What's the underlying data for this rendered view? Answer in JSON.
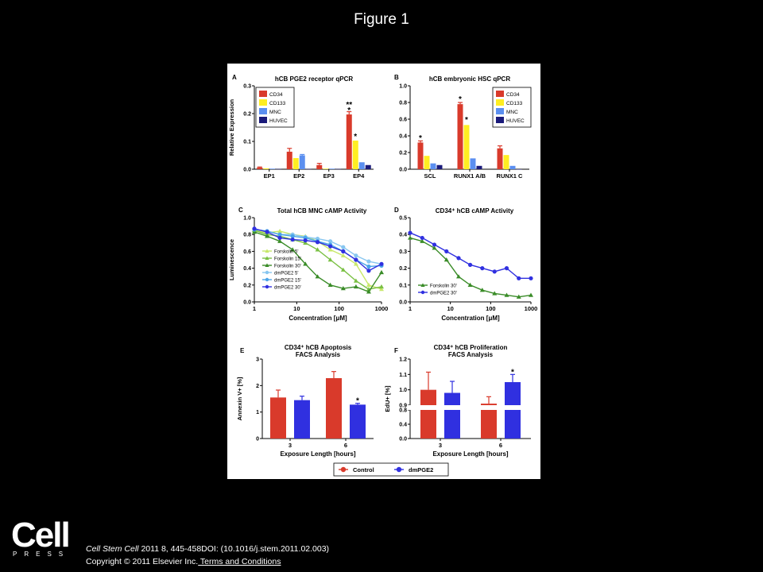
{
  "slide_title": "Figure 1",
  "citation": {
    "journal": "Cell Stem Cell",
    "rest": " 2011 8, 445-458DOI: (10.1016/j.stem.2011.02.003)"
  },
  "copyright": {
    "text": "Copyright © 2011 Elsevier Inc.",
    "link": " Terms and Conditions"
  },
  "logo": {
    "word": "Cell",
    "press": "PRESS"
  },
  "colors": {
    "red": "#d93a2b",
    "yellow": "#ffee22",
    "lightblue": "#5b8ff0",
    "navy": "#1a1a7a",
    "green": "#3a8c28",
    "purple": "#3030e0",
    "lightgreen": "#c8e86a",
    "midgreen": "#7ac043",
    "cyan": "#87c6f0",
    "skyblue": "#4aa4e8"
  },
  "chart_data": [
    {
      "panel": "A",
      "type": "bar",
      "title": "hCB PGE2 receptor qPCR",
      "ylabel": "Relative Expression",
      "xlabel": "",
      "ylim": [
        0,
        0.3
      ],
      "yticks": [
        "0.0",
        "0.1",
        "0.2",
        "0.3"
      ],
      "categories": [
        "EP1",
        "EP2",
        "EP3",
        "EP4"
      ],
      "series": [
        {
          "name": "CD34",
          "color": "#d93a2b",
          "values": [
            0.006,
            0.063,
            0.015,
            0.197
          ],
          "errors": [
            0.002,
            0.012,
            0.006,
            0.01
          ]
        },
        {
          "name": "CD133",
          "color": "#ffee22",
          "values": [
            0.003,
            0.04,
            0.002,
            0.103
          ],
          "errors": [
            0,
            0,
            0,
            0
          ]
        },
        {
          "name": "MNC",
          "color": "#5b8ff0",
          "values": [
            0.002,
            0.05,
            0.002,
            0.025
          ],
          "errors": [
            0,
            0.003,
            0,
            0
          ]
        },
        {
          "name": "HUVEC",
          "color": "#1a1a7a",
          "values": [
            0.001,
            0.001,
            0.001,
            0.015
          ],
          "errors": [
            0,
            0,
            0,
            0
          ]
        }
      ],
      "annotations": [
        {
          "text": "**",
          "cat": 3,
          "series": 0,
          "y": 0.235
        },
        {
          "text": "*",
          "cat": 3,
          "series": 0,
          "y": 0.215
        },
        {
          "text": "*",
          "cat": 3,
          "series": 1,
          "y": 0.12
        }
      ]
    },
    {
      "panel": "B",
      "type": "bar",
      "title": "hCB embryonic HSC qPCR",
      "ylabel": "",
      "xlabel": "",
      "ylim": [
        0,
        1.0
      ],
      "yticks": [
        "0.0",
        "0.2",
        "0.4",
        "0.6",
        "0.8",
        "1.0"
      ],
      "categories": [
        "SCL",
        "RUNX1 A/B",
        "RUNX1 C"
      ],
      "series": [
        {
          "name": "CD34",
          "color": "#d93a2b",
          "values": [
            0.32,
            0.78,
            0.25
          ],
          "errors": [
            0.02,
            0.02,
            0.03
          ]
        },
        {
          "name": "CD133",
          "color": "#ffee22",
          "values": [
            0.16,
            0.53,
            0.17
          ],
          "errors": [
            0,
            0,
            0
          ]
        },
        {
          "name": "MNC",
          "color": "#5b8ff0",
          "values": [
            0.07,
            0.13,
            0.04
          ],
          "errors": [
            0,
            0,
            0
          ]
        },
        {
          "name": "HUVEC",
          "color": "#1a1a7a",
          "values": [
            0.05,
            0.04,
            0.0
          ],
          "errors": [
            0,
            0,
            0
          ]
        }
      ],
      "annotations": [
        {
          "text": "*",
          "cat": 0,
          "series": 0,
          "y": 0.38
        },
        {
          "text": "*",
          "cat": 1,
          "series": 0,
          "y": 0.85
        },
        {
          "text": "*",
          "cat": 1,
          "series": 1,
          "y": 0.6
        }
      ]
    },
    {
      "panel": "C",
      "type": "line",
      "title": "Total hCB MNC cAMP Activity",
      "ylabel": "Luminescence",
      "xlabel": "Concentration [μM]",
      "xscale": "log",
      "xlim": [
        1,
        1000
      ],
      "xticks": [
        "1",
        "10",
        "100",
        "1000"
      ],
      "ylim": [
        0,
        1.0
      ],
      "yticks": [
        "0.0",
        "0.2",
        "0.4",
        "0.6",
        "0.8",
        "1.0"
      ],
      "x": [
        1,
        2,
        4,
        8,
        16,
        31,
        62,
        125,
        250,
        500,
        1000
      ],
      "series": [
        {
          "name": "Forskolin 5'",
          "color": "#c8e86a",
          "marker": "triangle",
          "values": [
            0.85,
            0.82,
            0.84,
            0.8,
            0.78,
            0.72,
            0.62,
            0.55,
            0.45,
            0.2,
            0.15
          ]
        },
        {
          "name": "Forskolin 15'",
          "color": "#7ac043",
          "marker": "triangle",
          "values": [
            0.85,
            0.8,
            0.78,
            0.74,
            0.7,
            0.62,
            0.5,
            0.38,
            0.25,
            0.15,
            0.18
          ]
        },
        {
          "name": "Forskolin 30'",
          "color": "#3a8c28",
          "marker": "triangle",
          "values": [
            0.83,
            0.78,
            0.72,
            0.62,
            0.45,
            0.3,
            0.2,
            0.16,
            0.18,
            0.12,
            0.35
          ]
        },
        {
          "name": "dmPGE2 5'",
          "color": "#87c6f0",
          "marker": "circle",
          "values": [
            0.86,
            0.84,
            0.8,
            0.8,
            0.77,
            0.75,
            0.72,
            0.65,
            0.55,
            0.48,
            0.45
          ]
        },
        {
          "name": "dmPGE2 15'",
          "color": "#4aa4e8",
          "marker": "circle",
          "values": [
            0.86,
            0.84,
            0.8,
            0.78,
            0.76,
            0.72,
            0.68,
            0.6,
            0.5,
            0.42,
            0.43
          ]
        },
        {
          "name": "dmPGE2 30'",
          "color": "#3030e0",
          "marker": "circle",
          "values": [
            0.87,
            0.83,
            0.76,
            0.74,
            0.73,
            0.71,
            0.66,
            0.6,
            0.5,
            0.37,
            0.45
          ]
        }
      ]
    },
    {
      "panel": "D",
      "type": "line",
      "title": "CD34⁺ hCB cAMP Activity",
      "ylabel": "",
      "xlabel": "Concentration [μM]",
      "xscale": "log",
      "xlim": [
        1,
        1000
      ],
      "xticks": [
        "1",
        "10",
        "100",
        "1000"
      ],
      "ylim": [
        0,
        0.5
      ],
      "yticks": [
        "0.0",
        "0.1",
        "0.2",
        "0.3",
        "0.4",
        "0.5"
      ],
      "x": [
        1,
        2,
        4,
        8,
        16,
        31,
        62,
        125,
        250,
        500,
        1000
      ],
      "series": [
        {
          "name": "Forskolin 30'",
          "color": "#3a8c28",
          "marker": "triangle",
          "values": [
            0.38,
            0.36,
            0.32,
            0.25,
            0.15,
            0.1,
            0.07,
            0.05,
            0.04,
            0.03,
            0.04
          ]
        },
        {
          "name": "dmPGE2 30'",
          "color": "#3030e0",
          "marker": "circle",
          "values": [
            0.41,
            0.38,
            0.34,
            0.3,
            0.26,
            0.22,
            0.2,
            0.18,
            0.2,
            0.14,
            0.14
          ]
        }
      ]
    },
    {
      "panel": "E",
      "type": "bar",
      "title": "CD34⁺ hCB Apoptosis",
      "subtitle": "FACS Analysis",
      "ylabel": "Annexin V+ [%]",
      "xlabel": "Exposure Length [hours]",
      "ylim": [
        0,
        3
      ],
      "yticks": [
        "0",
        "1",
        "2",
        "3"
      ],
      "categories": [
        "3",
        "6"
      ],
      "series": [
        {
          "name": "Control",
          "color": "#d93a2b",
          "values": [
            1.55,
            2.28
          ],
          "errors": [
            0.28,
            0.25
          ]
        },
        {
          "name": "dmPGE2",
          "color": "#3030e0",
          "values": [
            1.45,
            1.28
          ],
          "errors": [
            0.15,
            0.05
          ]
        }
      ],
      "annotations": [
        {
          "text": "*",
          "cat": 1,
          "series": 1,
          "y": 1.45
        }
      ]
    },
    {
      "panel": "F",
      "type": "bar",
      "title": "CD34⁺ hCB Proliferation",
      "subtitle": "FACS Analysis",
      "ylabel": "EdU+ [%]",
      "xlabel": "Exposure Length [hours]",
      "ylim": [
        0,
        1.2
      ],
      "yticks": [
        "0.0",
        "0.4",
        "0.8",
        "0.9",
        "1.0",
        "1.1",
        "1.2"
      ],
      "yaxis_break": [
        0.8,
        0.9
      ],
      "categories": [
        "3",
        "6"
      ],
      "series": [
        {
          "name": "Control",
          "color": "#d93a2b",
          "values": [
            1.0,
            0.91
          ],
          "errors": [
            0.115,
            0.045
          ]
        },
        {
          "name": "dmPGE2",
          "color": "#3030e0",
          "values": [
            0.98,
            1.05
          ],
          "errors": [
            0.075,
            0.05
          ]
        }
      ],
      "annotations": [
        {
          "text": "*",
          "cat": 1,
          "series": 1,
          "y": 1.12
        }
      ]
    }
  ],
  "shared_legend": [
    {
      "name": "Control",
      "color": "#d93a2b"
    },
    {
      "name": "dmPGE2",
      "color": "#3030e0"
    }
  ]
}
